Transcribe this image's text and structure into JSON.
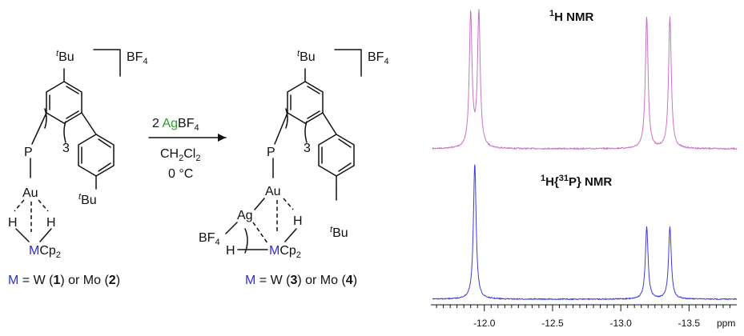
{
  "colors": {
    "gold": "#e0242a",
    "silver": "#2f9a2f",
    "metal": "#2b2fd6",
    "spectrum_top": "#c774c7",
    "spectrum_bottom": "#3c3cd8",
    "ink": "#111111"
  },
  "scheme": {
    "counterion_left": "BF",
    "counterion_sub": "4",
    "tbu_sup": "t",
    "tbu_text": "Bu",
    "p_label": "P",
    "three_label": "3",
    "au_label": "Au",
    "ag_label": "Ag",
    "h_label": "H",
    "m_label": "M",
    "cp_label": "Cp",
    "cp_sub": "2",
    "bf_label": "BF",
    "reagent_coeff": "2 ",
    "reagent_ag": "Ag",
    "reagent_bf": "BF",
    "solvent_main": "CH",
    "solvent_sub1": "2",
    "solvent_cl": "Cl",
    "solvent_sub2": "2",
    "temperature": "0 °C",
    "caption_left": {
      "m": "M",
      "eq": " = W (",
      "n1": "1",
      "mid": ") or Mo (",
      "n2": "2",
      "end": ")"
    },
    "caption_right": {
      "m": "M",
      "eq": " = W (",
      "n1": "3",
      "mid": ") or Mo (",
      "n2": "4",
      "end": ")"
    }
  },
  "chart_data": {
    "type": "line",
    "xlabel": "ppm",
    "xlim": [
      -11.62,
      -13.85
    ],
    "xticks": [
      -12.0,
      -12.5,
      -13.0,
      -13.5
    ],
    "xtick_labels": [
      "-12.0",
      "-12.5",
      "-13.0",
      "-13.5"
    ],
    "grid": false,
    "legend": "none",
    "panels": [
      {
        "title_sup": "1",
        "title_main": "H NMR",
        "color": "#c774c7",
        "peaks": [
          {
            "x": -11.9,
            "height": 1.0
          },
          {
            "x": -11.96,
            "height": 1.0
          },
          {
            "x": -13.19,
            "height": 0.98
          },
          {
            "x": -13.36,
            "height": 0.98
          }
        ]
      },
      {
        "title_sup1": "1",
        "title_main1": "H{",
        "title_sup2": "31",
        "title_main2": "P} NMR",
        "color": "#3c3cd8",
        "peaks": [
          {
            "x": -11.93,
            "height": 1.0
          },
          {
            "x": -13.19,
            "height": 0.53
          },
          {
            "x": -13.36,
            "height": 0.53
          }
        ]
      }
    ]
  }
}
